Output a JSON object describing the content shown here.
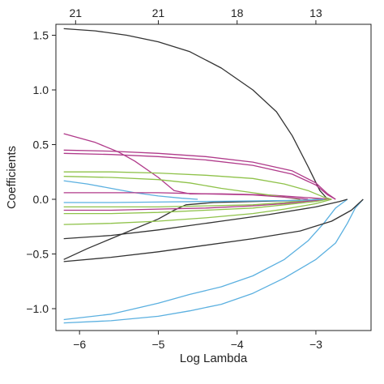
{
  "chart_data": {
    "type": "line",
    "title": "",
    "xlabel": "Log Lambda",
    "ylabel": "Coefficients",
    "xlim": [
      -6.3,
      -2.3
    ],
    "ylim": [
      -1.2,
      1.6
    ],
    "x_ticks": [
      -6,
      -5,
      -4,
      -3
    ],
    "y_ticks": [
      1.5,
      1.0,
      0.5,
      0.0,
      -0.5,
      -1.0
    ],
    "top_axis": {
      "label": "",
      "ticks": [
        {
          "x": -6.05,
          "label": "21"
        },
        {
          "x": -5.0,
          "label": "21"
        },
        {
          "x": -4.0,
          "label": "18"
        },
        {
          "x": -3.0,
          "label": "13"
        }
      ]
    },
    "grid": false,
    "legend": "none",
    "series": [
      {
        "color": "#333333",
        "points": [
          [
            -6.2,
            1.56
          ],
          [
            -5.8,
            1.54
          ],
          [
            -5.4,
            1.5
          ],
          [
            -5.0,
            1.44
          ],
          [
            -4.6,
            1.35
          ],
          [
            -4.2,
            1.2
          ],
          [
            -3.8,
            1.0
          ],
          [
            -3.5,
            0.8
          ],
          [
            -3.3,
            0.58
          ],
          [
            -3.1,
            0.3
          ],
          [
            -2.95,
            0.08
          ],
          [
            -2.85,
            0.0
          ]
        ]
      },
      {
        "color": "#5bb0e0",
        "points": [
          [
            -6.2,
            -1.1
          ],
          [
            -5.6,
            -1.05
          ],
          [
            -5.0,
            -0.95
          ],
          [
            -4.6,
            -0.87
          ],
          [
            -4.2,
            -0.8
          ],
          [
            -3.8,
            -0.7
          ],
          [
            -3.4,
            -0.55
          ],
          [
            -3.1,
            -0.38
          ],
          [
            -2.9,
            -0.22
          ],
          [
            -2.75,
            -0.08
          ],
          [
            -2.6,
            0.0
          ]
        ]
      },
      {
        "color": "#5bb0e0",
        "points": [
          [
            -6.2,
            -1.13
          ],
          [
            -5.6,
            -1.11
          ],
          [
            -5.0,
            -1.07
          ],
          [
            -4.6,
            -1.02
          ],
          [
            -4.2,
            -0.96
          ],
          [
            -3.8,
            -0.86
          ],
          [
            -3.4,
            -0.72
          ],
          [
            -3.0,
            -0.55
          ],
          [
            -2.75,
            -0.4
          ],
          [
            -2.6,
            -0.22
          ],
          [
            -2.5,
            -0.08
          ],
          [
            -2.4,
            0.0
          ]
        ]
      },
      {
        "color": "#333333",
        "points": [
          [
            -6.2,
            -0.57
          ],
          [
            -5.6,
            -0.53
          ],
          [
            -5.0,
            -0.48
          ],
          [
            -4.4,
            -0.42
          ],
          [
            -3.8,
            -0.36
          ],
          [
            -3.2,
            -0.29
          ],
          [
            -2.8,
            -0.2
          ],
          [
            -2.55,
            -0.1
          ],
          [
            -2.4,
            0.0
          ]
        ]
      },
      {
        "color": "#333333",
        "points": [
          [
            -6.2,
            -0.55
          ],
          [
            -5.9,
            -0.45
          ],
          [
            -5.6,
            -0.36
          ],
          [
            -5.3,
            -0.27
          ],
          [
            -5.0,
            -0.18
          ],
          [
            -4.8,
            -0.1
          ],
          [
            -4.65,
            -0.05
          ],
          [
            -4.3,
            -0.03
          ],
          [
            -3.8,
            -0.02
          ],
          [
            -3.2,
            -0.01
          ],
          [
            -2.9,
            0.0
          ]
        ]
      },
      {
        "color": "#333333",
        "points": [
          [
            -6.2,
            -0.36
          ],
          [
            -5.6,
            -0.33
          ],
          [
            -5.0,
            -0.28
          ],
          [
            -4.6,
            -0.24
          ],
          [
            -4.2,
            -0.2
          ],
          [
            -3.6,
            -0.14
          ],
          [
            -3.0,
            -0.07
          ],
          [
            -2.7,
            -0.02
          ],
          [
            -2.6,
            0.0
          ]
        ]
      },
      {
        "color": "#b03a8a",
        "points": [
          [
            -6.2,
            0.6
          ],
          [
            -5.8,
            0.52
          ],
          [
            -5.5,
            0.43
          ],
          [
            -5.3,
            0.35
          ],
          [
            -5.0,
            0.2
          ],
          [
            -4.8,
            0.08
          ],
          [
            -4.6,
            0.05
          ],
          [
            -4.2,
            0.05
          ],
          [
            -3.6,
            0.04
          ],
          [
            -3.0,
            0.01
          ],
          [
            -2.8,
            0.0
          ]
        ]
      },
      {
        "color": "#b03a8a",
        "points": [
          [
            -6.2,
            0.45
          ],
          [
            -5.6,
            0.44
          ],
          [
            -5.0,
            0.42
          ],
          [
            -4.4,
            0.39
          ],
          [
            -3.8,
            0.34
          ],
          [
            -3.3,
            0.26
          ],
          [
            -3.0,
            0.15
          ],
          [
            -2.85,
            0.05
          ],
          [
            -2.75,
            0.0
          ]
        ]
      },
      {
        "color": "#b03a8a",
        "points": [
          [
            -6.2,
            0.42
          ],
          [
            -5.6,
            0.41
          ],
          [
            -5.0,
            0.39
          ],
          [
            -4.4,
            0.36
          ],
          [
            -3.8,
            0.31
          ],
          [
            -3.3,
            0.23
          ],
          [
            -3.0,
            0.13
          ],
          [
            -2.85,
            0.04
          ],
          [
            -2.75,
            0.0
          ]
        ]
      },
      {
        "color": "#8fc24a",
        "points": [
          [
            -6.2,
            0.25
          ],
          [
            -5.6,
            0.25
          ],
          [
            -5.0,
            0.24
          ],
          [
            -4.4,
            0.22
          ],
          [
            -3.8,
            0.19
          ],
          [
            -3.4,
            0.14
          ],
          [
            -3.1,
            0.08
          ],
          [
            -2.9,
            0.02
          ],
          [
            -2.8,
            0.0
          ]
        ]
      },
      {
        "color": "#8fc24a",
        "points": [
          [
            -6.2,
            0.21
          ],
          [
            -5.6,
            0.2
          ],
          [
            -5.0,
            0.18
          ],
          [
            -4.6,
            0.15
          ],
          [
            -4.2,
            0.1
          ],
          [
            -3.8,
            0.06
          ],
          [
            -3.4,
            0.02
          ],
          [
            -3.2,
            0.0
          ]
        ]
      },
      {
        "color": "#5bb0e0",
        "points": [
          [
            -6.2,
            0.17
          ],
          [
            -5.9,
            0.14
          ],
          [
            -5.6,
            0.1
          ],
          [
            -5.3,
            0.06
          ],
          [
            -5.0,
            0.03
          ],
          [
            -4.7,
            0.01
          ],
          [
            -4.5,
            0.0
          ]
        ]
      },
      {
        "color": "#b03a8a",
        "points": [
          [
            -6.2,
            0.06
          ],
          [
            -5.6,
            0.06
          ],
          [
            -5.0,
            0.06
          ],
          [
            -4.4,
            0.05
          ],
          [
            -3.8,
            0.04
          ],
          [
            -3.4,
            0.02
          ],
          [
            -3.1,
            0.0
          ]
        ]
      },
      {
        "color": "#8fc24a",
        "points": [
          [
            -6.2,
            -0.07
          ],
          [
            -5.6,
            -0.07
          ],
          [
            -5.0,
            -0.07
          ],
          [
            -4.4,
            -0.06
          ],
          [
            -3.8,
            -0.05
          ],
          [
            -3.4,
            -0.03
          ],
          [
            -3.1,
            -0.01
          ],
          [
            -3.0,
            0.0
          ]
        ]
      },
      {
        "color": "#8fc24a",
        "points": [
          [
            -6.2,
            -0.23
          ],
          [
            -5.6,
            -0.22
          ],
          [
            -5.0,
            -0.2
          ],
          [
            -4.4,
            -0.17
          ],
          [
            -3.8,
            -0.13
          ],
          [
            -3.4,
            -0.09
          ],
          [
            -3.0,
            -0.04
          ],
          [
            -2.8,
            0.0
          ]
        ]
      },
      {
        "color": "#8fc24a",
        "points": [
          [
            -6.2,
            -0.13
          ],
          [
            -5.6,
            -0.13
          ],
          [
            -5.0,
            -0.12
          ],
          [
            -4.4,
            -0.1
          ],
          [
            -3.8,
            -0.08
          ],
          [
            -3.4,
            -0.05
          ],
          [
            -3.0,
            -0.02
          ],
          [
            -2.85,
            0.0
          ]
        ]
      },
      {
        "color": "#b03a8a",
        "points": [
          [
            -6.2,
            -0.1
          ],
          [
            -5.6,
            -0.1
          ],
          [
            -5.0,
            -0.09
          ],
          [
            -4.4,
            -0.08
          ],
          [
            -3.8,
            -0.06
          ],
          [
            -3.4,
            -0.04
          ],
          [
            -3.0,
            -0.01
          ],
          [
            -2.9,
            0.0
          ]
        ]
      },
      {
        "color": "#5bb0e0",
        "points": [
          [
            -6.2,
            -0.03
          ],
          [
            -5.6,
            -0.03
          ],
          [
            -5.0,
            -0.025
          ],
          [
            -4.4,
            -0.02
          ],
          [
            -3.8,
            -0.015
          ],
          [
            -3.2,
            -0.01
          ],
          [
            -2.9,
            0.0
          ]
        ]
      }
    ]
  }
}
